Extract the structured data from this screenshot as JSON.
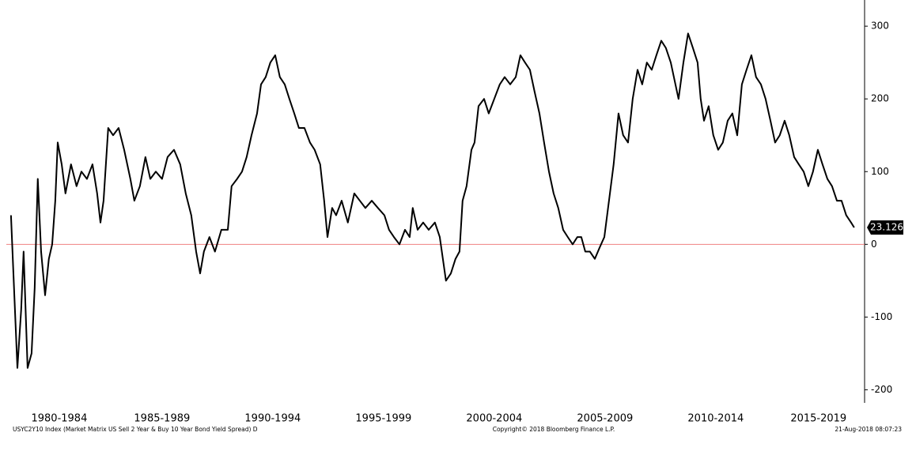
{
  "chart_data": {
    "type": "line",
    "x": [
      1980.67,
      1980.78,
      1980.96,
      1981.13,
      1981.24,
      1981.42,
      1981.6,
      1981.74,
      1981.88,
      1982.03,
      1982.21,
      1982.38,
      1982.53,
      1982.67,
      1982.78,
      1982.96,
      1983.13,
      1983.38,
      1983.63,
      1983.85,
      1984.1,
      1984.35,
      1984.56,
      1984.71,
      1984.85,
      1985.06,
      1985.28,
      1985.53,
      1985.78,
      1986.06,
      1986.24,
      1986.49,
      1986.74,
      1986.96,
      1987.21,
      1987.49,
      1987.74,
      1988.03,
      1988.31,
      1988.56,
      1988.81,
      1989.03,
      1989.21,
      1989.38,
      1989.63,
      1989.88,
      1990.17,
      1990.46,
      1990.63,
      1990.88,
      1991.1,
      1991.31,
      1991.53,
      1991.78,
      1991.96,
      1992.17,
      1992.38,
      1992.6,
      1992.81,
      1993.03,
      1993.24,
      1993.46,
      1993.67,
      1993.92,
      1994.17,
      1994.38,
      1994.63,
      1994.81,
      1994.96,
      1995.17,
      1995.35,
      1995.6,
      1995.88,
      1996.17,
      1996.42,
      1996.67,
      1996.96,
      1997.24,
      1997.53,
      1997.74,
      1997.96,
      1998.21,
      1998.46,
      1998.67,
      1998.81,
      1999.03,
      1999.28,
      1999.53,
      1999.81,
      2000.03,
      2000.17,
      2000.31,
      2000.53,
      2000.74,
      2000.92,
      2001.06,
      2001.24,
      2001.46,
      2001.6,
      2001.78,
      2002.03,
      2002.24,
      2002.49,
      2002.74,
      2002.96,
      2003.21,
      2003.46,
      2003.67,
      2003.88,
      2004.1,
      2004.31,
      2004.53,
      2004.74,
      2004.96,
      2005.17,
      2005.38,
      2005.6,
      2005.81,
      2006.03,
      2006.24,
      2006.42,
      2006.6,
      2006.81,
      2007.03,
      2007.24,
      2007.46,
      2007.67,
      2007.88,
      2008.1,
      2008.31,
      2008.53,
      2008.74,
      2008.96,
      2009.17,
      2009.38,
      2009.6,
      2009.81,
      2010.03,
      2010.24,
      2010.46,
      2010.67,
      2010.81,
      2011.03,
      2011.24,
      2011.46,
      2011.67,
      2011.81,
      2011.96,
      2012.17,
      2012.38,
      2012.6,
      2012.81,
      2013.03,
      2013.24,
      2013.46,
      2013.67,
      2013.88,
      2014.1,
      2014.31,
      2014.53,
      2014.74,
      2014.96,
      2015.17,
      2015.38,
      2015.6,
      2015.81,
      2016.03,
      2016.24,
      2016.46,
      2016.67,
      2016.88,
      2017.1,
      2017.31,
      2017.53,
      2017.74,
      2017.96,
      2018.17,
      2018.38,
      2018.6,
      2018.74
    ],
    "values": [
      40,
      -40,
      -170,
      -90,
      -10,
      -170,
      -150,
      -60,
      90,
      -10,
      -70,
      -20,
      0,
      60,
      140,
      110,
      70,
      110,
      80,
      100,
      90,
      110,
      70,
      30,
      60,
      160,
      150,
      160,
      130,
      90,
      60,
      80,
      120,
      90,
      100,
      90,
      120,
      130,
      110,
      70,
      40,
      -10,
      -40,
      -10,
      10,
      -10,
      20,
      20,
      80,
      90,
      100,
      120,
      150,
      180,
      220,
      230,
      250,
      260,
      230,
      220,
      200,
      180,
      160,
      160,
      140,
      130,
      110,
      60,
      10,
      50,
      40,
      60,
      30,
      70,
      60,
      50,
      60,
      50,
      40,
      20,
      10,
      0,
      20,
      10,
      50,
      20,
      30,
      20,
      30,
      10,
      -20,
      -50,
      -40,
      -20,
      -10,
      60,
      80,
      130,
      140,
      190,
      200,
      180,
      200,
      220,
      230,
      220,
      230,
      260,
      250,
      240,
      210,
      180,
      140,
      100,
      70,
      50,
      20,
      10,
      0,
      10,
      10,
      -10,
      -10,
      -20,
      -5,
      10,
      60,
      110,
      180,
      150,
      140,
      200,
      240,
      220,
      250,
      240,
      260,
      280,
      270,
      250,
      220,
      200,
      250,
      290,
      270,
      250,
      200,
      170,
      190,
      150,
      130,
      140,
      170,
      180,
      150,
      220,
      240,
      260,
      230,
      220,
      200,
      170,
      140,
      150,
      170,
      150,
      120,
      110,
      100,
      80,
      100,
      130,
      110,
      90,
      80,
      60,
      60,
      40,
      30,
      23.126
    ],
    "color": "#000000",
    "last_value_label": "23.126",
    "reference_line": {
      "value": 0,
      "color": "#f08080"
    },
    "xlim": [
      1980.46,
      2019.21
    ],
    "xticks": [
      {
        "value": 1982.85,
        "label": "1980-1984"
      },
      {
        "value": 1987.49,
        "label": "1985-1989"
      },
      {
        "value": 1992.49,
        "label": "1990-1994"
      },
      {
        "value": 1997.49,
        "label": "1995-1999"
      },
      {
        "value": 2002.49,
        "label": "2000-2004"
      },
      {
        "value": 2007.49,
        "label": "2005-2009"
      },
      {
        "value": 2012.49,
        "label": "2010-2014"
      },
      {
        "value": 2017.13,
        "label": "2015-2019"
      }
    ],
    "ylim": [
      -218,
      336
    ],
    "yticks": [
      300,
      200,
      100,
      0,
      -100,
      -200
    ],
    "grid": false,
    "footer_left": "USYC2Y10 Index (Market Matrix US Sell 2 Year & Buy 10 Year Bond Yield Spread)  D",
    "footer_center": "Copyright© 2018 Bloomberg Finance L.P.",
    "footer_right": "21-Aug-2018 08:07:23"
  }
}
